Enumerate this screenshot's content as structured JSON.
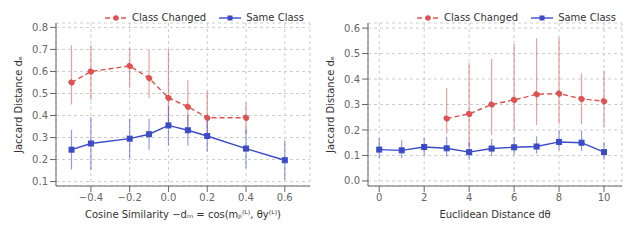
{
  "chart_data": [
    {
      "type": "line",
      "xlabel": "Cosine Similarity −dₘ = cos(mⱼᵢ⁽ᴸ⁾, θy⁽ᴸ⁾)",
      "ylabel": "Jaccard Distance dₑ",
      "xlim": [
        -0.58,
        0.73
      ],
      "ylim": [
        0.08,
        0.82
      ],
      "xticks": [
        {
          "value": -0.4,
          "label": "−0.4"
        },
        {
          "value": -0.2,
          "label": "−0.2"
        },
        {
          "value": 0,
          "label": "0.0"
        },
        0.2,
        0.4,
        0.6
      ],
      "yticks": [
        0.1,
        0.2,
        0.3,
        0.4,
        0.5,
        0.6,
        0.7,
        0.8
      ],
      "grid": true,
      "legend": "upper right",
      "series": [
        {
          "name": "Class Changed",
          "color": "#e05252",
          "marker": "circle",
          "line_style": "dashed",
          "x": [
            -0.5,
            -0.4,
            -0.2,
            -0.1,
            0.0,
            0.1,
            0.2,
            0.4
          ],
          "values": [
            0.55,
            0.6,
            0.625,
            0.57,
            0.48,
            0.44,
            0.39,
            0.39
          ],
          "yerr_lo": [
            0.1,
            0.13,
            0.1,
            0.09,
            0.13,
            0.09,
            0.07,
            0.07
          ],
          "yerr_hi": [
            0.17,
            0.12,
            0.08,
            0.13,
            0.22,
            0.12,
            0.12,
            0.07
          ]
        },
        {
          "name": "Same Class",
          "color": "#3b4bc8",
          "marker": "square",
          "line_style": "solid",
          "x": [
            -0.5,
            -0.4,
            -0.2,
            -0.1,
            0.0,
            0.1,
            0.2,
            0.4,
            0.6
          ],
          "values": [
            0.245,
            0.273,
            0.295,
            0.315,
            0.355,
            0.333,
            0.307,
            0.25,
            0.197
          ],
          "yerr_lo": [
            0.09,
            0.12,
            0.09,
            0.07,
            0.09,
            0.07,
            0.07,
            0.09,
            0.09
          ],
          "yerr_hi": [
            0.09,
            0.12,
            0.09,
            0.07,
            0.09,
            0.07,
            0.07,
            0.09,
            0.09
          ]
        }
      ]
    },
    {
      "type": "line",
      "xlabel": "Euclidean Distance dθ",
      "ylabel": "Jaccard Distance dₑ",
      "xlim": [
        -0.5,
        10.8
      ],
      "ylim": [
        -0.02,
        0.62
      ],
      "xticks": [
        0,
        2,
        4,
        6,
        8,
        10
      ],
      "yticks": [
        {
          "value": 0,
          "label": "0.0"
        },
        0.1,
        0.2,
        0.3,
        0.4,
        0.5,
        0.6
      ],
      "grid": true,
      "legend": "upper right",
      "series": [
        {
          "name": "Class Changed",
          "color": "#e05252",
          "marker": "circle",
          "line_style": "dashed",
          "x": [
            3,
            4,
            5,
            6,
            7,
            8,
            9,
            10
          ],
          "values": [
            0.245,
            0.263,
            0.3,
            0.318,
            0.34,
            0.343,
            0.322,
            0.313
          ],
          "yerr_lo": [
            0.06,
            0.13,
            0.12,
            0.12,
            0.12,
            0.12,
            0.1,
            0.1
          ],
          "yerr_hi": [
            0.12,
            0.2,
            0.18,
            0.22,
            0.22,
            0.22,
            0.1,
            0.12
          ]
        },
        {
          "name": "Same Class",
          "color": "#3b4bc8",
          "marker": "square",
          "line_style": "solid",
          "x": [
            0,
            1,
            2,
            3,
            4,
            5,
            6,
            7,
            8,
            9,
            10
          ],
          "values": [
            0.123,
            0.12,
            0.133,
            0.128,
            0.113,
            0.127,
            0.132,
            0.135,
            0.153,
            0.15,
            0.113
          ],
          "yerr_lo": [
            0.035,
            0.03,
            0.033,
            0.032,
            0.03,
            0.03,
            0.03,
            0.028,
            0.032,
            0.033,
            0.03
          ],
          "yerr_hi": [
            0.045,
            0.04,
            0.035,
            0.045,
            0.04,
            0.038,
            0.04,
            0.04,
            0.048,
            0.048,
            0.04
          ]
        }
      ]
    }
  ]
}
